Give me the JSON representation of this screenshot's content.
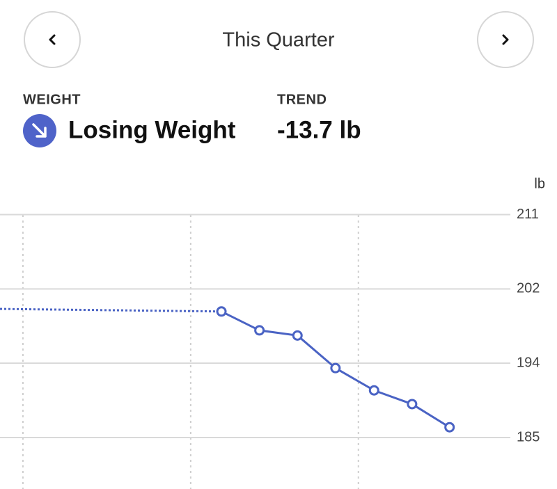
{
  "header": {
    "title": "This Quarter"
  },
  "summary": {
    "weight_label": "WEIGHT",
    "status": "Losing Weight",
    "trend_label": "TREND",
    "trend": "-13.7 lb"
  },
  "chart_data": {
    "type": "line",
    "ylabel": "lb",
    "ylim": [
      179,
      212.5
    ],
    "yticks": [
      {
        "value": 211,
        "label": "211"
      },
      {
        "value": 202.33,
        "label": "202"
      },
      {
        "value": 193.67,
        "label": "194"
      },
      {
        "value": 185,
        "label": "185"
      }
    ],
    "xlim": [
      -4.1,
      86.8
    ],
    "xticks": [
      0,
      30,
      60
    ],
    "grid": true,
    "series": [
      {
        "color": "#4a63c4",
        "line_style": "dotted",
        "markers": false,
        "x": [
          -4.1,
          35.5
        ],
        "values": [
          200.0,
          199.7
        ]
      },
      {
        "color": "#4a63c4",
        "line_style": "solid",
        "markers": true,
        "x": [
          35.5,
          42.3,
          49.1,
          55.9,
          62.8,
          69.6,
          76.3
        ],
        "values": [
          199.7,
          197.5,
          196.9,
          193.1,
          190.5,
          188.9,
          186.2
        ]
      }
    ]
  }
}
